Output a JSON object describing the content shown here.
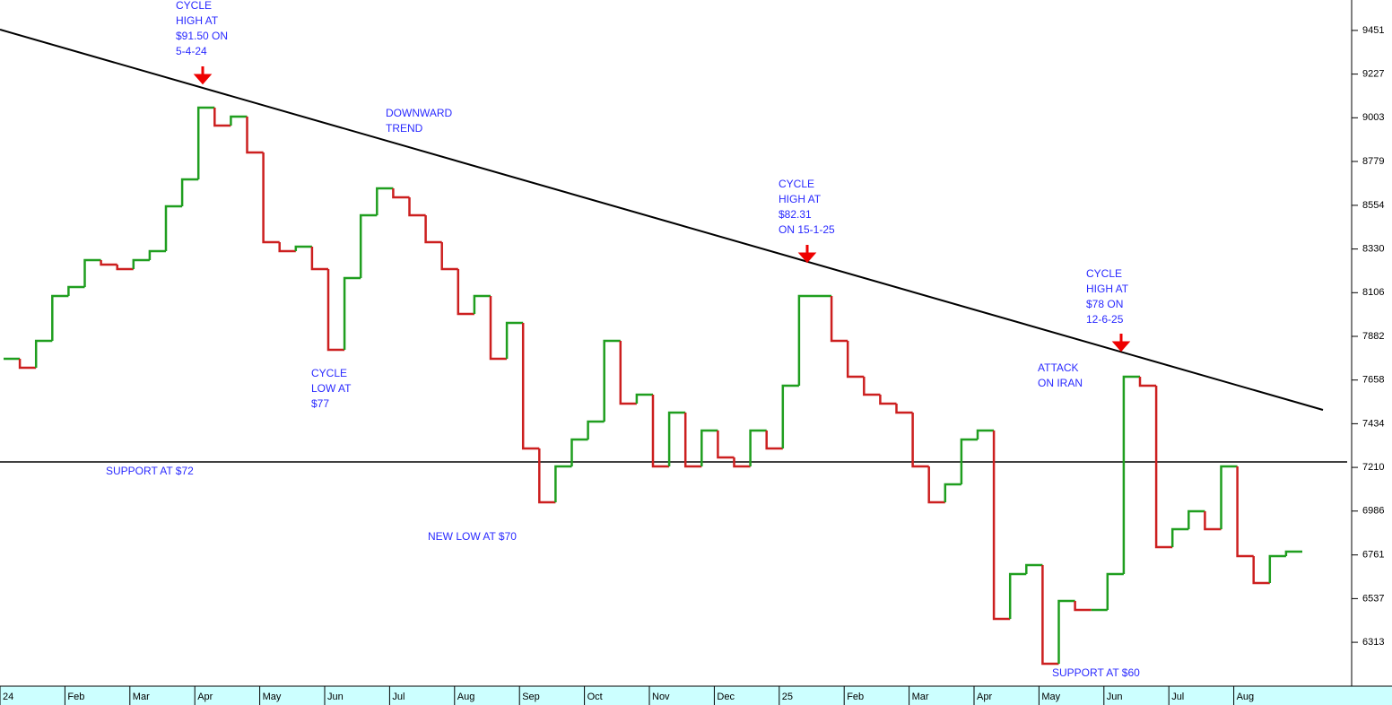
{
  "chart_data": {
    "type": "step",
    "categories": [
      "24",
      null,
      null,
      null,
      "Feb",
      null,
      null,
      null,
      "Mar",
      null,
      null,
      null,
      "Apr",
      null,
      null,
      null,
      "May",
      null,
      null,
      null,
      "Jun",
      null,
      null,
      null,
      "Jul",
      null,
      null,
      null,
      "Aug",
      null,
      null,
      null,
      "Sep",
      null,
      null,
      null,
      "Oct",
      null,
      null,
      null,
      "Nov",
      null,
      null,
      null,
      "Dec",
      null,
      null,
      null,
      "25",
      null,
      null,
      null,
      "Feb",
      null,
      null,
      null,
      "Mar",
      null,
      null,
      null,
      "Apr",
      null,
      null,
      null,
      "May",
      null,
      null,
      null,
      "Jun",
      null,
      null,
      null,
      "Jul",
      null,
      null,
      null,
      "Aug",
      null,
      null,
      null
    ],
    "values": [
      7767,
      7721,
      7859,
      8089,
      8135,
      8273,
      8250,
      8227,
      8273,
      8319,
      8549,
      8687,
      9055,
      8963,
      9009,
      8825,
      8365,
      8319,
      8342,
      8227,
      7813,
      8181,
      8503,
      8641,
      8595,
      8503,
      8365,
      8227,
      7997,
      8089,
      7767,
      7951,
      7307,
      7031,
      7215,
      7353,
      7445,
      7859,
      7537,
      7583,
      7215,
      7491,
      7215,
      7399,
      7261,
      7215,
      7399,
      7307,
      7629,
      8089,
      8089,
      7859,
      7675,
      7583,
      7537,
      7491,
      7215,
      7031,
      7123,
      7353,
      7399,
      6433,
      6663,
      6709,
      6203,
      6525,
      6479,
      6479,
      6663,
      7675,
      7629,
      6801,
      6893,
      6985,
      6893,
      7215,
      6755,
      6617,
      6755,
      6778
    ],
    "up_color": "#1f9e1f",
    "down_color": "#cc1f1f",
    "ylim": [
      6088,
      9607
    ],
    "yticks": [
      6313,
      6537,
      6761,
      6986,
      7210,
      7434,
      7658,
      7882,
      8106,
      8330,
      8554,
      8779,
      9003,
      9227,
      9451
    ],
    "annotations": [
      [
        "CYCLE",
        "HIGH AT",
        "$91.50 ON",
        "5-4-24"
      ],
      [
        "DOWNWARD",
        "TREND"
      ],
      [
        "CYCLE",
        "HIGH AT",
        "$82.31",
        "ON 15-1-25"
      ],
      [
        "CYCLE",
        "HIGH AT",
        "$78 ON",
        "12-6-25"
      ],
      [
        "ATTACK",
        "ON IRAN"
      ],
      [
        "CYCLE",
        "LOW AT",
        "$77"
      ],
      [
        "SUPPORT AT $72"
      ],
      [
        "NEW LOW AT $70"
      ],
      [
        "SUPPORT AT $60"
      ]
    ]
  }
}
